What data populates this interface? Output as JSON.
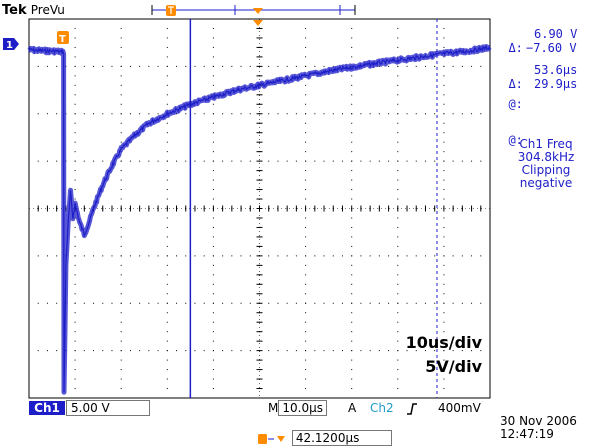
{
  "header": {
    "brand": "Tek",
    "mode": "PreVu"
  },
  "cursor_readouts": {
    "delta_v_symbol": "Δ:",
    "delta_v": "6.90 V",
    "at_v_symbol": "@:",
    "at_v": "−7.60 V",
    "delta_t_symbol": "Δ:",
    "delta_t": "53.6μs",
    "at_t_symbol": "@:",
    "at_t": "29.9μs"
  },
  "measurements": {
    "line1": "Ch1 Freq",
    "line2": "304.8kHz",
    "line3": "Clipping",
    "line4": "negative"
  },
  "annotations": {
    "time_div": "10us/div",
    "volt_div": "5V/div"
  },
  "channel_marker": "1",
  "trigger_marker": "T",
  "bottom_bar": {
    "ch1_label": "Ch1",
    "ch1_scale": "5.00 V",
    "timebase_prefix": "M",
    "timebase": "10.0μs",
    "trigger_mode": "A",
    "trigger_source": "Ch2",
    "trigger_slope_icon": "rising-edge-icon",
    "trigger_level": "400mV",
    "trigger_position": "42.1200μs",
    "date": "30 Nov 2006",
    "time": "12:47:19"
  },
  "colors": {
    "trace": "#1e1ec8",
    "grid": "#000000",
    "trigger": "#ff8c00",
    "cursor": "#1e1ec8"
  },
  "chart_data": {
    "type": "line",
    "title": "",
    "xlabel": "",
    "ylabel": "",
    "x_divisions": 10,
    "y_divisions": 8,
    "xlim": [
      0,
      10
    ],
    "ylim": [
      -4,
      4
    ],
    "series": [
      {
        "x": [
          0.0,
          0.3,
          0.6,
          0.75,
          0.76,
          0.8,
          0.85,
          0.9,
          0.95,
          1.0,
          1.1,
          1.2,
          1.3,
          1.4,
          1.6,
          1.8,
          2.0,
          2.3,
          2.6,
          3.0,
          3.5,
          4.0,
          4.5,
          5.0,
          5.5,
          6.0,
          6.5,
          7.0,
          7.5,
          8.0,
          8.5,
          9.0,
          9.5,
          10.0
        ],
        "y": [
          3.35,
          3.33,
          3.32,
          3.3,
          -3.9,
          -1.2,
          -0.3,
          0.35,
          -0.2,
          0.1,
          -0.3,
          -0.55,
          -0.3,
          0.0,
          0.5,
          0.9,
          1.25,
          1.55,
          1.8,
          2.0,
          2.2,
          2.35,
          2.5,
          2.6,
          2.7,
          2.8,
          2.9,
          2.98,
          3.06,
          3.13,
          3.2,
          3.27,
          3.32,
          3.4
        ]
      }
    ],
    "cursors": {
      "vertical_1_div": 3.5,
      "vertical_2_div": 8.85
    }
  }
}
